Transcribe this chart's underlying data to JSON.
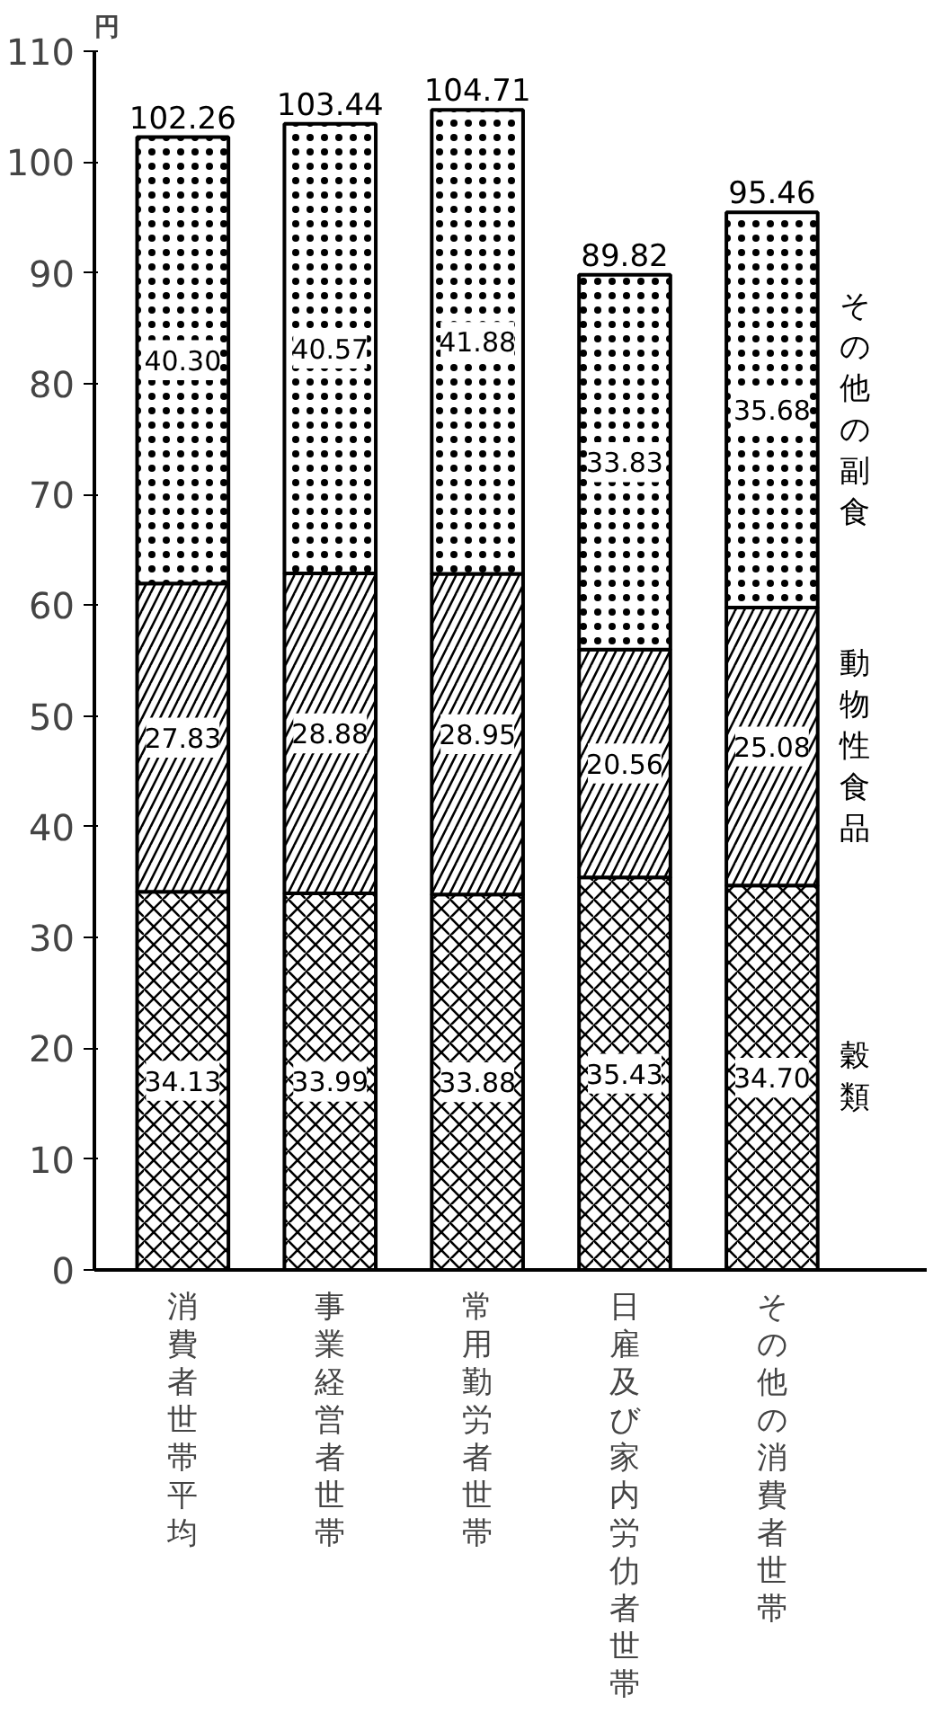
{
  "chart_data": {
    "type": "bar",
    "stacked": true,
    "ylabel": "円",
    "categories": [
      "消費者世帯平均",
      "事業経営者世帯",
      "常用勤労者世帯",
      "日雇及び家内労仂者世帯",
      "その他の消費者世帯"
    ],
    "series": [
      {
        "name": "穀類",
        "color": "#000000",
        "values": [
          34.13,
          33.99,
          33.88,
          35.43,
          34.7
        ],
        "value_labels": [
          "34.13",
          "33.99",
          "33.88",
          "35.43",
          "34.70"
        ]
      },
      {
        "name": "動物性食品",
        "color": "#000000",
        "values": [
          27.83,
          28.88,
          28.95,
          20.56,
          25.08
        ],
        "value_labels": [
          "27.83",
          "28.88",
          "28.95",
          "20.56",
          "25.08"
        ]
      },
      {
        "name": "その他の副食",
        "color": "#000000",
        "values": [
          40.3,
          40.57,
          41.88,
          33.83,
          35.68
        ],
        "value_labels": [
          "40.30",
          "40.57",
          "41.88",
          "33.83",
          "35.68"
        ]
      }
    ],
    "totals": [
      "102.26",
      "103.44",
      "104.71",
      "89.82",
      "95.46"
    ],
    "ylim": [
      0,
      110
    ],
    "yticks": [
      0,
      10,
      20,
      30,
      40,
      50,
      60,
      70,
      80,
      90,
      100,
      110
    ],
    "grid": false
  }
}
